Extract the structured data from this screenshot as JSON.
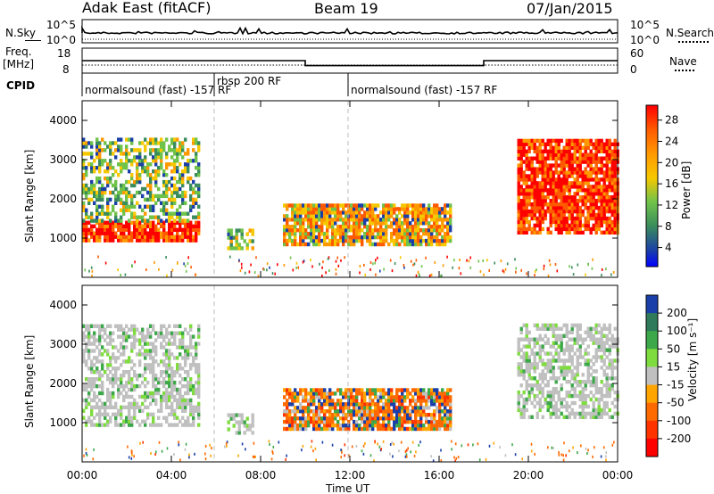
{
  "header": {
    "title_left": "Adak East (fitACF)",
    "title_center": "Beam 19",
    "title_right": "07/Jan/2015"
  },
  "top_panels": {
    "nsky_label": "N.Sky",
    "nsky_ticks": [
      "10^5",
      "10^0"
    ],
    "nsearch_label": "N.Search",
    "nsearch_ticks": [
      "10^5",
      "10^0"
    ],
    "freq_label": "Freq.",
    "freq_unit": "[MHz]",
    "freq_ticks": [
      "18",
      "8"
    ],
    "nave_label": "Nave",
    "nave_ticks": [
      "60",
      "0"
    ],
    "cpid_label": "CPID",
    "cpid_segments": [
      {
        "label": "normalsound (fast) -157 RF",
        "start_hour": 0,
        "end_hour": 6
      },
      {
        "label": "rbsp 200 RF",
        "start_hour": 6,
        "end_hour": 12
      },
      {
        "label": "normalsound (fast) -157 RF",
        "start_hour": 12,
        "end_hour": 24
      }
    ],
    "freq_steps": [
      {
        "start_hour": 0,
        "end_hour": 10,
        "value": 13
      },
      {
        "start_hour": 10,
        "end_hour": 18,
        "value": 11
      },
      {
        "start_hour": 18,
        "end_hour": 24,
        "value": 13
      }
    ]
  },
  "axes": {
    "xlabel": "Time UT",
    "xticks": [
      "00:00",
      "04:00",
      "08:00",
      "12:00",
      "16:00",
      "20:00",
      "00:00"
    ],
    "ylabel": "Slant Range [km]",
    "yticks": [
      "4000",
      "3000",
      "2000",
      "1000"
    ]
  },
  "power_colorbar": {
    "label": "Power [dB]",
    "ticks": [
      "28",
      "24",
      "20",
      "16",
      "12",
      "8",
      "4"
    ],
    "colors": [
      "#ff0000",
      "#ff5a00",
      "#ff9900",
      "#f6c800",
      "#6fc34a",
      "#3a8c5c",
      "#1a3fa8",
      "#0000ff"
    ]
  },
  "velocity_colorbar": {
    "label": "Velocity [m s⁻¹]",
    "ticks": [
      "200",
      "100",
      "50",
      "15",
      "-15",
      "-50",
      "-100",
      "-200"
    ],
    "colors": [
      "#1a3fa8",
      "#2f7a5a",
      "#3ca84a",
      "#7fdc3f",
      "#c0c0c0",
      "#ffa500",
      "#ff6a00",
      "#ff3300",
      "#ff0000"
    ]
  },
  "chart_data": [
    {
      "type": "heatmap",
      "title": "Power",
      "xlabel": "Time UT",
      "ylabel": "Slant Range [km]",
      "xlim_hours": [
        0,
        24
      ],
      "ylim_km": [
        0,
        4500
      ],
      "colorbar_label": "Power [dB]",
      "regions": [
        {
          "t0": 0.0,
          "t1": 5.2,
          "r0": 900,
          "r1": 1400,
          "level": "high"
        },
        {
          "t0": 0.0,
          "t1": 5.2,
          "r0": 1400,
          "r1": 3500,
          "level": "medium"
        },
        {
          "t0": 6.5,
          "t1": 7.7,
          "r0": 700,
          "r1": 1200,
          "level": "medium"
        },
        {
          "t0": 9.0,
          "t1": 16.5,
          "r0": 800,
          "r1": 1800,
          "level": "medium-high"
        },
        {
          "t0": 19.5,
          "t1": 24.0,
          "r0": 1100,
          "r1": 3500,
          "level": "high"
        }
      ]
    },
    {
      "type": "heatmap",
      "title": "Velocity",
      "xlabel": "Time UT",
      "ylabel": "Slant Range [km]",
      "xlim_hours": [
        0,
        24
      ],
      "ylim_km": [
        0,
        4500
      ],
      "colorbar_label": "Velocity [m s⁻¹]",
      "regions": [
        {
          "t0": 0.0,
          "t1": 5.2,
          "r0": 900,
          "r1": 3500,
          "level": "ground-scatter"
        },
        {
          "t0": 6.5,
          "t1": 7.7,
          "r0": 700,
          "r1": 1200,
          "level": "ground-scatter"
        },
        {
          "t0": 9.0,
          "t1": 16.5,
          "r0": 800,
          "r1": 1800,
          "level": "negative-mixed"
        },
        {
          "t0": 19.5,
          "t1": 24.0,
          "r0": 1100,
          "r1": 3500,
          "level": "ground-scatter"
        }
      ]
    }
  ]
}
